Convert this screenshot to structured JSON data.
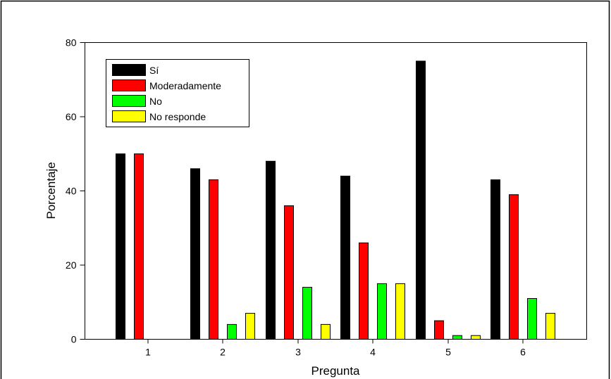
{
  "chart_data": {
    "type": "bar",
    "title": "",
    "xlabel": "Pregunta",
    "ylabel": "Porcentaje",
    "categories": [
      "1",
      "2",
      "3",
      "4",
      "5",
      "6"
    ],
    "ylim": [
      0,
      80
    ],
    "yticks": [
      0,
      20,
      40,
      60,
      80
    ],
    "grid": false,
    "legend_position": "top-left",
    "series": [
      {
        "name": "Sí",
        "color": "#000000",
        "values": [
          50,
          46,
          48,
          44,
          75,
          43
        ]
      },
      {
        "name": "Moderadamente",
        "color": "#ff0000",
        "values": [
          50,
          43,
          36,
          26,
          5,
          39
        ]
      },
      {
        "name": "No",
        "color": "#00ff00",
        "values": [
          0,
          4,
          14,
          15,
          1,
          11
        ]
      },
      {
        "name": "No responde",
        "color": "#ffff00",
        "values": [
          0,
          7,
          4,
          15,
          1,
          7
        ]
      }
    ]
  }
}
